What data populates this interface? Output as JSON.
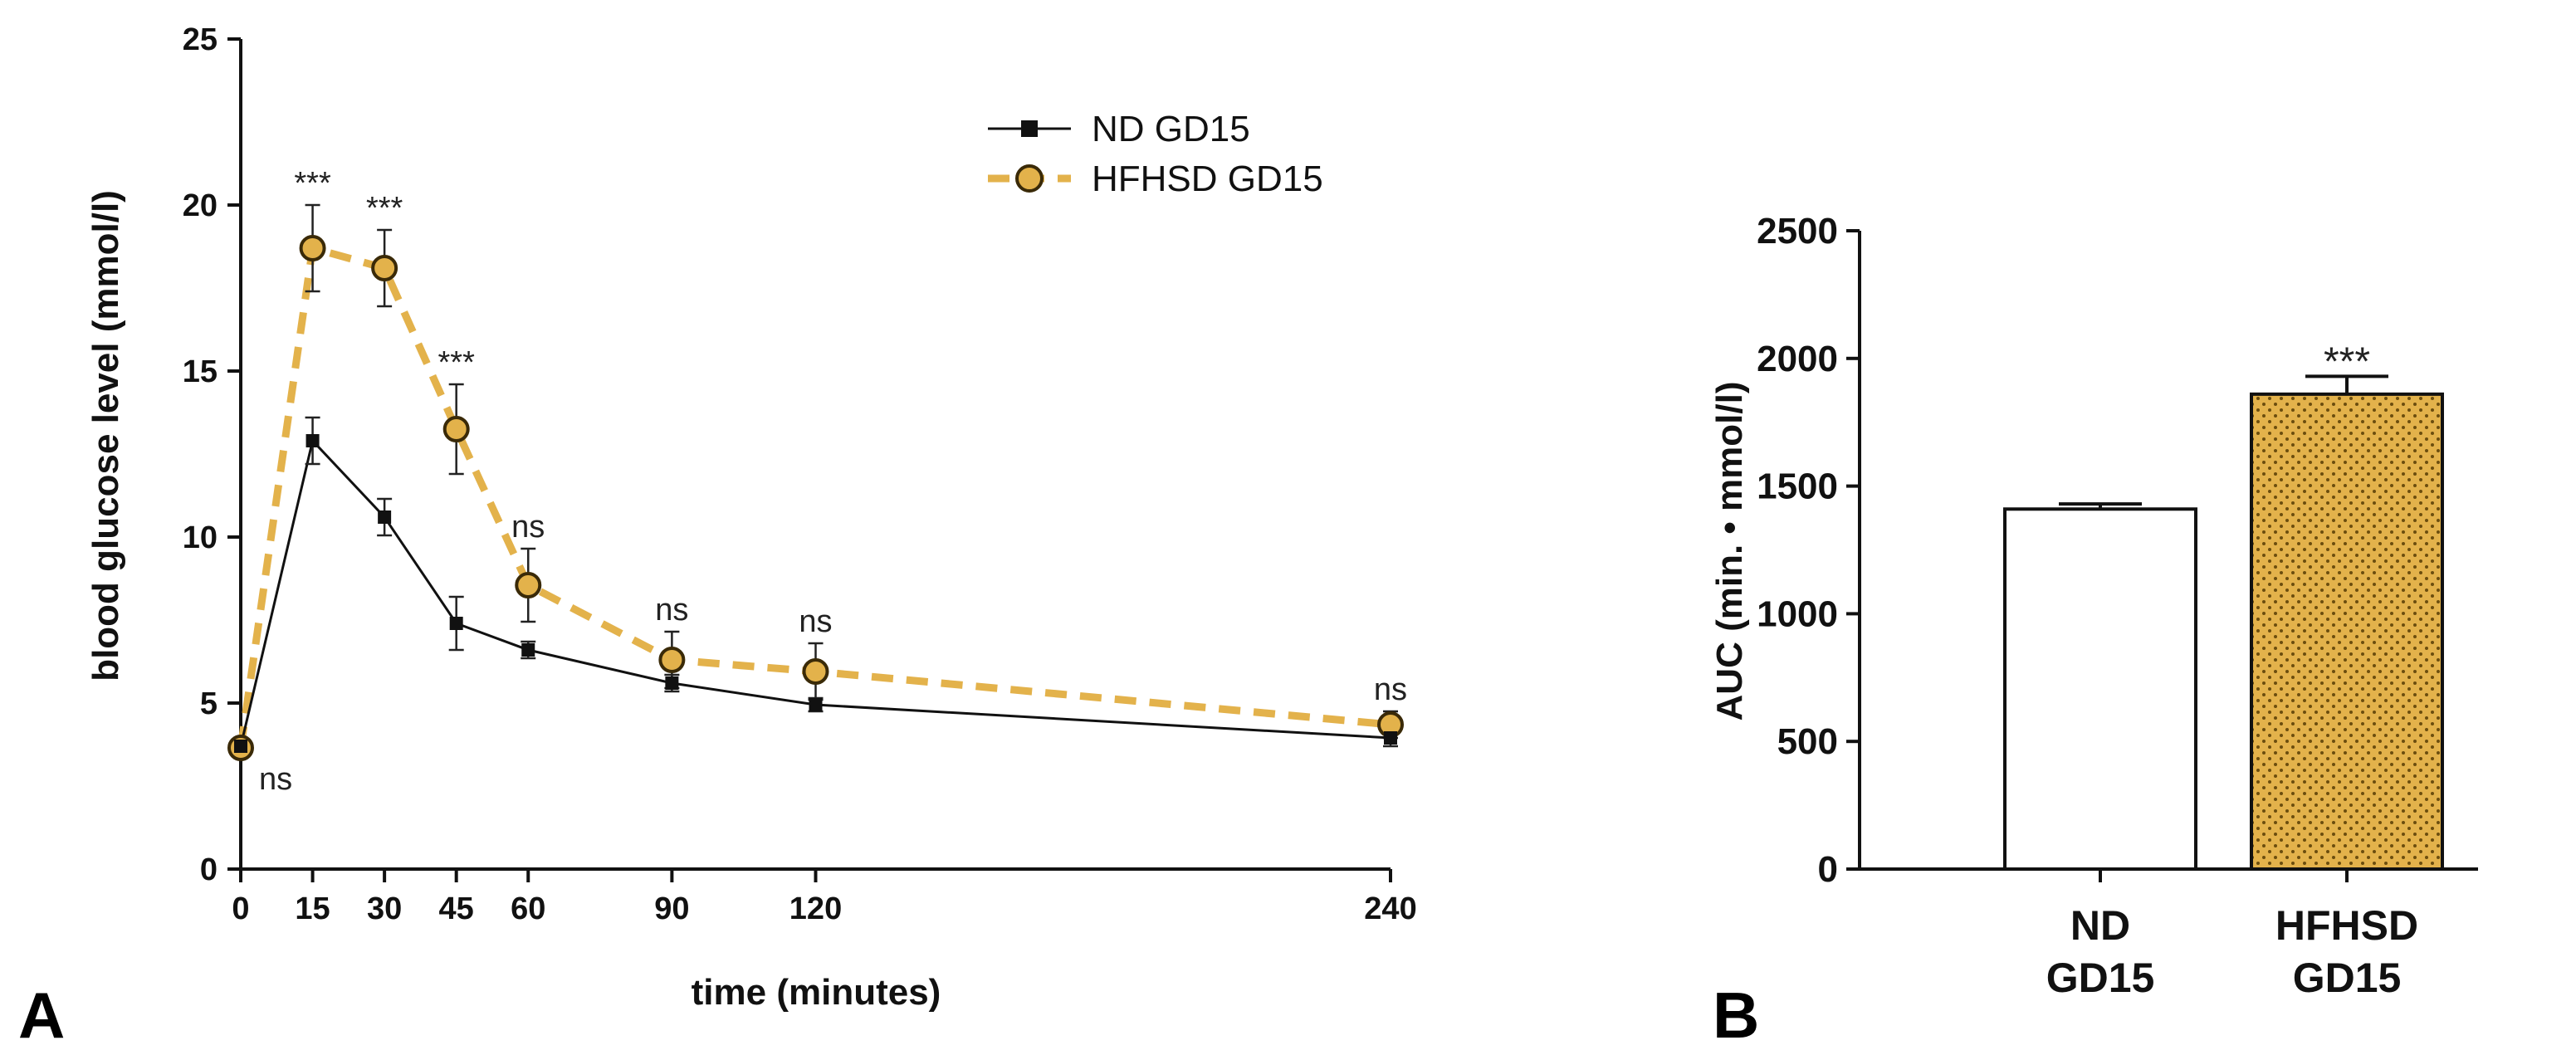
{
  "colors": {
    "nd": "#111111",
    "hfhsd": "#e3b24b",
    "hfhsd_edge": "#7a5a10",
    "axis": "#111111"
  },
  "panels": {
    "a_label": "A",
    "b_label": "B"
  },
  "chart_data": [
    {
      "type": "line",
      "panel": "A",
      "title": "",
      "xlabel": "time (minutes)",
      "ylabel": "blood glucose level (mmol/l)",
      "x_ticks": [
        0,
        15,
        30,
        45,
        60,
        90,
        120,
        240
      ],
      "y_ticks": [
        0,
        5,
        10,
        15,
        20,
        25
      ],
      "xlim": [
        0,
        240
      ],
      "ylim": [
        0,
        25
      ],
      "legend_position": "top-right",
      "series": [
        {
          "name": "ND GD15",
          "style": "solid",
          "marker": "square",
          "x": [
            0,
            15,
            30,
            45,
            60,
            90,
            120,
            240
          ],
          "values": [
            3.7,
            12.9,
            10.6,
            7.4,
            6.6,
            5.6,
            4.95,
            3.95
          ],
          "errors": [
            0.25,
            0.7,
            0.55,
            0.8,
            0.25,
            0.25,
            0.2,
            0.25
          ]
        },
        {
          "name": "HFHSD GD15",
          "style": "dashed",
          "marker": "circle",
          "x": [
            0,
            15,
            30,
            45,
            60,
            90,
            120,
            240
          ],
          "values": [
            3.65,
            18.7,
            18.1,
            13.25,
            8.55,
            6.3,
            5.95,
            4.35
          ],
          "errors": [
            0.3,
            1.3,
            1.15,
            1.35,
            1.1,
            0.85,
            0.85,
            0.4
          ]
        }
      ],
      "annotations": [
        {
          "x": 0,
          "text": "ns",
          "placement": "right"
        },
        {
          "x": 15,
          "text": "***",
          "placement": "above"
        },
        {
          "x": 30,
          "text": "***",
          "placement": "above"
        },
        {
          "x": 45,
          "text": "***",
          "placement": "above"
        },
        {
          "x": 60,
          "text": "ns",
          "placement": "above"
        },
        {
          "x": 90,
          "text": "ns",
          "placement": "above"
        },
        {
          "x": 120,
          "text": "ns",
          "placement": "above"
        },
        {
          "x": 240,
          "text": "ns",
          "placement": "above"
        }
      ]
    },
    {
      "type": "bar",
      "panel": "B",
      "title": "",
      "xlabel": "",
      "ylabel": "AUC (min. • mmol/l)",
      "y_ticks": [
        0,
        500,
        1000,
        1500,
        2000,
        2500
      ],
      "ylim": [
        0,
        2500
      ],
      "categories": [
        "ND GD15",
        "HFHSD GD15"
      ],
      "category_lines": [
        [
          "ND",
          "GD15"
        ],
        [
          "HFHSD",
          "GD15"
        ]
      ],
      "values": [
        1410,
        1860
      ],
      "errors": [
        20,
        70
      ],
      "fills": [
        "white",
        "dotted-gold"
      ],
      "annotations": [
        {
          "category": "HFHSD GD15",
          "text": "***"
        }
      ]
    }
  ]
}
